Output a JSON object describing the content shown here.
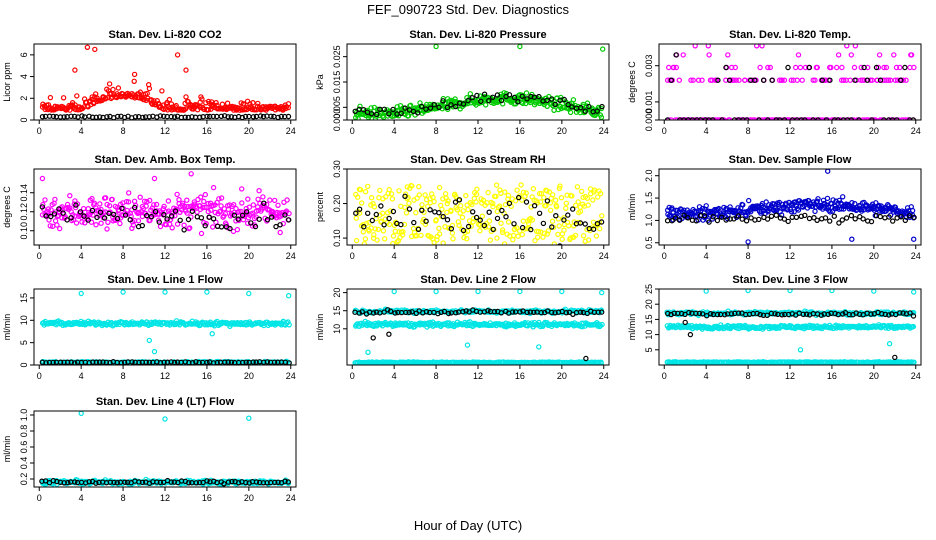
{
  "figure": {
    "title": "FEF_090723  Std. Dev. Diagnostics",
    "xlabel": "Hour of Day (UTC)"
  },
  "chart_data": [
    {
      "type": "scatter",
      "title": "Stan. Dev. Li-820 CO2",
      "ylabel": "Licor ppm",
      "xlim": [
        -0.5,
        24.5
      ],
      "ylim": [
        0,
        7
      ],
      "xticks": [
        "0",
        "4",
        "8",
        "12",
        "16",
        "20",
        "24"
      ],
      "yticks": [
        "0",
        "2",
        "4",
        "6"
      ],
      "ytick_values": [
        0,
        2,
        4,
        6
      ],
      "colors": {
        "main": "#ff0000",
        "ref": "#000000"
      },
      "series": [
        {
          "role": "main",
          "gen": {
            "n": 300,
            "base": 0.9,
            "spread": 1.6,
            "scale": 0.45,
            "spikes": [
              [
                4.6,
                6.7
              ],
              [
                5.3,
                6.5
              ],
              [
                13.2,
                6.0
              ],
              [
                3.4,
                4.6
              ],
              [
                14.0,
                4.6
              ],
              [
                9.1,
                4.2
              ]
            ],
            "xr": [
              0.3,
              23.8
            ],
            "bump": [
              [
                4,
                12,
                1.2
              ]
            ]
          }
        },
        {
          "role": "ref",
          "gen": {
            "n": 70,
            "base": 0.3,
            "spread": 0.15,
            "xr": [
              0.3,
              23.8
            ]
          }
        }
      ]
    },
    {
      "type": "scatter",
      "title": "Stan. Dev. Li-820 Pressure",
      "ylabel": "kPa",
      "xlim": [
        -0.5,
        24.5
      ],
      "ylim": [
        0,
        0.03
      ],
      "xticks": [
        "0",
        "4",
        "8",
        "12",
        "16",
        "20",
        "24"
      ],
      "yticks": [
        "0.000",
        "0.005",
        "0.015",
        "0.025"
      ],
      "ytick_values": [
        0,
        0.005,
        0.015,
        0.025
      ],
      "colors": {
        "main": "#00cc00",
        "ref": "#000000"
      },
      "series": [
        {
          "role": "main",
          "gen": {
            "n": 320,
            "base": 0.0055,
            "spread": 0.004,
            "xr": [
              0.3,
              23.8
            ],
            "wave": 0.003,
            "spikes": [
              [
                8.0,
                0.029
              ],
              [
                16.0,
                0.029
              ],
              [
                23.9,
                0.028
              ]
            ]
          }
        },
        {
          "role": "ref",
          "gen": {
            "n": 60,
            "base": 0.006,
            "spread": 0.003,
            "xr": [
              0.3,
              23.8
            ],
            "wave": 0.003
          }
        }
      ]
    },
    {
      "type": "scatter",
      "title": "Stan. Dev. Li-820 Temp.",
      "ylabel": "degrees C",
      "xlim": [
        -0.5,
        24.5
      ],
      "ylim": [
        0,
        0.0042
      ],
      "xticks": [
        "0",
        "4",
        "8",
        "12",
        "16",
        "20",
        "24"
      ],
      "yticks": [
        "0.000",
        "0.001",
        "0.003"
      ],
      "ytick_values": [
        0,
        0.001,
        0.003
      ],
      "colors": {
        "main": "#ff00ff",
        "ref": "#000000"
      },
      "series": [
        {
          "role": "main",
          "gen": {
            "n": 260,
            "levels": [
              0,
              0.0022,
              0.0029,
              0.0036,
              0.0041
            ],
            "weights": [
              0.55,
              0.25,
              0.12,
              0.05,
              0.03
            ],
            "xr": [
              0.3,
              23.8
            ]
          }
        },
        {
          "role": "ref",
          "gen": {
            "n": 60,
            "levels": [
              0,
              0.0022,
              0.0029,
              0.0036
            ],
            "weights": [
              0.6,
              0.25,
              0.1,
              0.05
            ],
            "xr": [
              0.3,
              23.8
            ]
          }
        }
      ]
    },
    {
      "type": "scatter",
      "title": "Stan. Dev. Amb. Box Temp.",
      "ylabel": "degrees C",
      "xlim": [
        -0.5,
        24.5
      ],
      "ylim": [
        0.085,
        0.165
      ],
      "xticks": [
        "0",
        "4",
        "8",
        "12",
        "16",
        "20",
        "24"
      ],
      "yticks": [
        "0.10",
        "0.12",
        "0.14"
      ],
      "ytick_values": [
        0.1,
        0.12,
        0.14
      ],
      "colors": {
        "main": "#ff00ff",
        "ref": "#000000"
      },
      "series": [
        {
          "role": "main",
          "gen": {
            "n": 330,
            "base": 0.12,
            "spread": 0.03,
            "xr": [
              0.3,
              23.8
            ],
            "spikes": [
              [
                0.3,
                0.155
              ],
              [
                14.5,
                0.16
              ],
              [
                11.0,
                0.155
              ]
            ]
          }
        },
        {
          "role": "ref",
          "gen": {
            "n": 60,
            "base": 0.115,
            "spread": 0.02,
            "xr": [
              0.3,
              23.8
            ]
          }
        }
      ]
    },
    {
      "type": "scatter",
      "title": "Stan. Dev. Gas Stream RH",
      "ylabel": "percent",
      "xlim": [
        -0.5,
        24.5
      ],
      "ylim": [
        0.08,
        0.3
      ],
      "xticks": [
        "0",
        "4",
        "8",
        "12",
        "16",
        "20",
        "24"
      ],
      "yticks": [
        "0.10",
        "0.20",
        "0.30"
      ],
      "ytick_values": [
        0.1,
        0.2,
        0.3
      ],
      "colors": {
        "main": "#ffff00",
        "ref": "#000000"
      },
      "series": [
        {
          "role": "main",
          "gen": {
            "n": 330,
            "base": 0.16,
            "spread": 0.1,
            "xr": [
              0.3,
              23.8
            ],
            "levels_mix": [
              0.11,
              0.13,
              0.2,
              0.22
            ]
          }
        },
        {
          "role": "ref",
          "gen": {
            "n": 60,
            "base": 0.16,
            "spread": 0.09,
            "xr": [
              0.3,
              23.8
            ]
          }
        }
      ]
    },
    {
      "type": "scatter",
      "title": "Stan. Dev. Sample Flow",
      "ylabel": "ml/min",
      "xlim": [
        -0.5,
        24.5
      ],
      "ylim": [
        0.45,
        2.15
      ],
      "xticks": [
        "0",
        "4",
        "8",
        "12",
        "16",
        "20",
        "24"
      ],
      "yticks": [
        "0.5",
        "1.0",
        "1.5",
        "2.0"
      ],
      "ytick_values": [
        0.5,
        1.0,
        1.5,
        2.0
      ],
      "colors": {
        "main": "#0000cc",
        "ref": "#000000"
      },
      "series": [
        {
          "role": "main",
          "gen": {
            "n": 330,
            "base": 1.25,
            "spread": 0.25,
            "xr": [
              0.3,
              23.8
            ],
            "wave": 0.1,
            "spikes": [
              [
                15.6,
                2.1
              ],
              [
                17.9,
                0.58
              ],
              [
                8.0,
                0.52
              ],
              [
                23.8,
                0.58
              ]
            ]
          }
        },
        {
          "role": "ref",
          "gen": {
            "n": 60,
            "base": 1.05,
            "spread": 0.15,
            "xr": [
              0.3,
              23.8
            ]
          }
        }
      ]
    },
    {
      "type": "scatter",
      "title": "Stan. Dev. Line 1 Flow",
      "ylabel": "ml/min",
      "xlim": [
        -0.5,
        24.5
      ],
      "ylim": [
        0,
        17
      ],
      "xticks": [
        "0",
        "4",
        "8",
        "12",
        "16",
        "20",
        "24"
      ],
      "yticks": [
        "0",
        "5",
        "10",
        "15"
      ],
      "ytick_values": [
        0,
        5,
        10,
        15
      ],
      "colors": {
        "main": "#00e5e5",
        "ref": "#000000"
      },
      "series": [
        {
          "role": "main",
          "gen": {
            "n": 260,
            "base": 9.3,
            "spread": 0.8,
            "xr": [
              0.3,
              23.8
            ],
            "spikes": [
              [
                4.0,
                16.0
              ],
              [
                8.0,
                16.3
              ],
              [
                12.0,
                16.3
              ],
              [
                16.0,
                16.3
              ],
              [
                20.0,
                16.0
              ],
              [
                23.8,
                15.5
              ],
              [
                10.5,
                5.5
              ],
              [
                11.0,
                3.0
              ],
              [
                16.5,
                7.0
              ]
            ]
          }
        },
        {
          "role": "main",
          "gen": {
            "n": 200,
            "base": 0.6,
            "spread": 0.3,
            "xr": [
              0.3,
              23.8
            ]
          }
        },
        {
          "role": "ref",
          "gen": {
            "n": 70,
            "base": 0.6,
            "spread": 0.2,
            "xr": [
              0.3,
              23.8
            ]
          }
        }
      ]
    },
    {
      "type": "scatter",
      "title": "Stan. Dev. Line 2 Flow",
      "ylabel": "ml/min",
      "xlim": [
        -0.5,
        24.5
      ],
      "ylim": [
        0,
        21
      ],
      "xticks": [
        "0",
        "4",
        "8",
        "12",
        "16",
        "20",
        "24"
      ],
      "yticks": [
        "10",
        "15",
        "20"
      ],
      "ytick_values": [
        10,
        15,
        20
      ],
      "colors": {
        "main": "#00e5e5",
        "ref": "#000000"
      },
      "series": [
        {
          "role": "main",
          "gen": {
            "n": 260,
            "base": 11.2,
            "spread": 1.0,
            "xr": [
              0.3,
              23.8
            ],
            "spikes": [
              [
                4.0,
                20.3
              ],
              [
                8.0,
                20.3
              ],
              [
                12.0,
                20.3
              ],
              [
                16.0,
                20.3
              ],
              [
                20.0,
                20.3
              ],
              [
                23.8,
                20.0
              ],
              [
                1.5,
                3.5
              ],
              [
                11.0,
                5.5
              ],
              [
                17.8,
                5.0
              ]
            ]
          }
        },
        {
          "role": "main",
          "gen": {
            "n": 220,
            "base": 14.8,
            "spread": 0.8,
            "xr": [
              0.3,
              23.8
            ]
          }
        },
        {
          "role": "main",
          "gen": {
            "n": 220,
            "base": 0.7,
            "spread": 0.3,
            "xr": [
              0.3,
              23.8
            ]
          }
        },
        {
          "role": "ref",
          "gen": {
            "n": 70,
            "base": 14.6,
            "spread": 0.8,
            "xr": [
              0.3,
              23.8
            ],
            "spikes": [
              [
                2.0,
                7.5
              ],
              [
                3.5,
                8.5
              ],
              [
                22.3,
                1.8
              ]
            ]
          }
        }
      ]
    },
    {
      "type": "scatter",
      "title": "Stan. Dev. Line 3 Flow",
      "ylabel": "ml/min",
      "xlim": [
        -0.5,
        24.5
      ],
      "ylim": [
        0,
        25
      ],
      "xticks": [
        "0",
        "4",
        "8",
        "12",
        "16",
        "20",
        "24"
      ],
      "yticks": [
        "5",
        "10",
        "15",
        "20",
        "25"
      ],
      "ytick_values": [
        5,
        10,
        15,
        20,
        25
      ],
      "colors": {
        "main": "#00e5e5",
        "ref": "#000000"
      },
      "series": [
        {
          "role": "main",
          "gen": {
            "n": 260,
            "base": 12.5,
            "spread": 1.0,
            "xr": [
              0.3,
              23.8
            ],
            "spikes": [
              [
                4.0,
                24.3
              ],
              [
                8.0,
                24.5
              ],
              [
                12.0,
                24.5
              ],
              [
                16.0,
                24.5
              ],
              [
                20.0,
                24.3
              ],
              [
                23.8,
                24.0
              ],
              [
                13.0,
                5.0
              ],
              [
                21.5,
                7.0
              ]
            ]
          }
        },
        {
          "role": "main",
          "gen": {
            "n": 220,
            "base": 17.0,
            "spread": 0.9,
            "xr": [
              0.3,
              23.8
            ]
          }
        },
        {
          "role": "main",
          "gen": {
            "n": 220,
            "base": 0.9,
            "spread": 0.3,
            "xr": [
              0.3,
              23.8
            ]
          }
        },
        {
          "role": "ref",
          "gen": {
            "n": 70,
            "base": 16.8,
            "spread": 0.9,
            "xr": [
              0.3,
              23.8
            ],
            "spikes": [
              [
                2.5,
                10.0
              ],
              [
                22.0,
                2.5
              ],
              [
                2.0,
                14.0
              ]
            ]
          }
        }
      ]
    },
    {
      "type": "scatter",
      "title": "Stan. Dev. Line 4 (LT) Flow",
      "ylabel": "ml/min",
      "xlim": [
        -0.5,
        24.5
      ],
      "ylim": [
        0.1,
        1.05
      ],
      "xticks": [
        "0",
        "4",
        "8",
        "12",
        "16",
        "20",
        "24"
      ],
      "yticks": [
        "0.2",
        "0.4",
        "0.6",
        "0.8",
        "1.0"
      ],
      "ytick_values": [
        0.2,
        0.4,
        0.6,
        0.8,
        1.0
      ],
      "colors": {
        "main": "#00e5e5",
        "ref": "#000000"
      },
      "series": [
        {
          "role": "main",
          "gen": {
            "n": 280,
            "base": 0.16,
            "spread": 0.04,
            "xr": [
              0.3,
              23.8
            ],
            "spikes": [
              [
                4.0,
                1.02
              ],
              [
                12.0,
                0.95
              ],
              [
                20.0,
                0.96
              ]
            ]
          }
        },
        {
          "role": "ref",
          "gen": {
            "n": 70,
            "base": 0.16,
            "spread": 0.03,
            "xr": [
              0.3,
              23.8
            ]
          }
        }
      ]
    }
  ]
}
